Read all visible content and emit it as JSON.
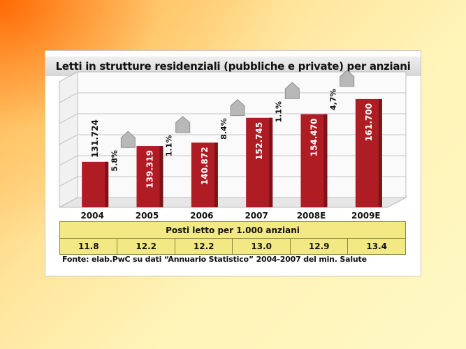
{
  "chart_data": {
    "type": "bar",
    "title": "Letti in strutture residenziali (pubbliche e private) per anziani",
    "categories": [
      "2004",
      "2005",
      "2006",
      "2007",
      "2008E",
      "2009E"
    ],
    "values": [
      131724,
      139319,
      140872,
      152745,
      154470,
      161700
    ],
    "value_labels": [
      "131.724",
      "139.319",
      "140.872",
      "152.745",
      "154.470",
      "161.700"
    ],
    "growth_labels": [
      "5.8%",
      "1.1%",
      "8.4%",
      "1.1%",
      "4,7%"
    ],
    "ylim": [
      110000,
      170000
    ],
    "grid": true,
    "bar_color": "#b01c24",
    "table": {
      "header": "Posti letto per 1.000 anziani",
      "values": [
        "11.8",
        "12.2",
        "12.2",
        "13.0",
        "12.9",
        "13.4"
      ]
    },
    "source": "Fonte: elab.PwC su dati “Annuario Statistico” 2004-2007 del min. Salute"
  }
}
